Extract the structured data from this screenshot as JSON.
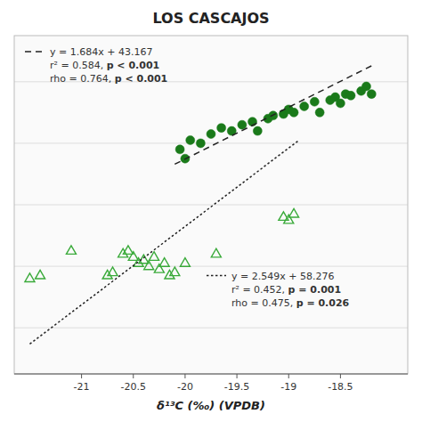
{
  "chart_data": {
    "type": "scatter",
    "title": "LOS CASCAJOS",
    "xlabel": "δ¹³C (‰) (VPDB)",
    "xlim": [
      -21.65,
      -17.85
    ],
    "xticks": [
      -21,
      -20.5,
      -20,
      -19.5,
      -19,
      -18.5
    ],
    "ylim": [
      2.5,
      13.5
    ],
    "yticks": [
      4,
      6,
      8,
      10,
      12
    ],
    "tick_labels": "x",
    "grid": true,
    "series": [
      {
        "marker": "circle",
        "color": "#1a7a1a",
        "x": [
          -20.05,
          -20.0,
          -19.95,
          -19.85,
          -19.75,
          -19.65,
          -19.55,
          -19.45,
          -19.35,
          -19.3,
          -19.2,
          -19.15,
          -19.05,
          -19.0,
          -18.95,
          -18.85,
          -18.75,
          -18.7,
          -18.6,
          -18.55,
          -18.5,
          -18.45,
          -18.4,
          -18.3,
          -18.25,
          -18.2
        ],
        "values": [
          9.8,
          9.5,
          10.1,
          10.0,
          10.3,
          10.5,
          10.4,
          10.6,
          10.7,
          10.4,
          10.8,
          10.9,
          10.95,
          11.1,
          11.0,
          11.2,
          11.35,
          11.0,
          11.4,
          11.5,
          11.3,
          11.6,
          11.55,
          11.7,
          11.85,
          11.6
        ]
      },
      {
        "marker": "open-triangle",
        "color": "#3aaa3a",
        "x": [
          -21.5,
          -21.4,
          -21.1,
          -20.75,
          -20.7,
          -20.6,
          -20.55,
          -20.5,
          -20.45,
          -20.4,
          -20.35,
          -20.3,
          -20.25,
          -20.2,
          -20.15,
          -20.1,
          -20.0,
          -19.7,
          -19.05,
          -19.0,
          -18.95
        ],
        "values": [
          5.6,
          5.7,
          6.5,
          5.7,
          5.8,
          6.4,
          6.5,
          6.3,
          6.1,
          6.2,
          6.0,
          6.3,
          5.9,
          6.1,
          5.7,
          5.8,
          6.1,
          6.4,
          7.6,
          7.5,
          7.7
        ]
      },
      {
        "type": "line",
        "line_style": "dashed",
        "color": "#222222",
        "x": [
          -20.1,
          -18.2
        ],
        "values": [
          9.3186,
          12.5182
        ]
      },
      {
        "type": "line",
        "line_style": "dotted",
        "color": "#222222",
        "x": [
          -21.5,
          -18.9
        ],
        "values": [
          3.4725,
          10.0999
        ]
      }
    ],
    "annotations": [
      [
        "y = 1.684x + 43.167",
        "r² = 0.584, p < 0.001",
        "rho = 0.764, p < 0.001"
      ],
      [
        "y = 2.549x + 58.276",
        "r² = 0.452, p = 0.001",
        "rho = 0.475, p = 0.026"
      ]
    ]
  }
}
